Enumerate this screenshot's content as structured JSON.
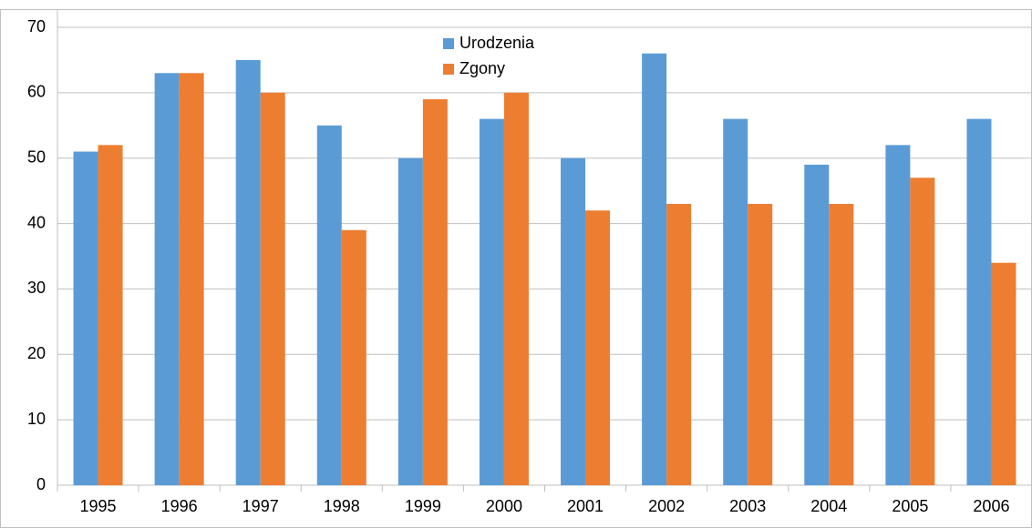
{
  "chart_data": {
    "type": "bar",
    "categories": [
      "1995",
      "1996",
      "1997",
      "1998",
      "1999",
      "2000",
      "2001",
      "2002",
      "2003",
      "2004",
      "2005",
      "2006"
    ],
    "series": [
      {
        "name": "Urodzenia",
        "color": "#5b9bd5",
        "values": [
          51,
          63,
          65,
          55,
          50,
          56,
          50,
          66,
          56,
          49,
          52,
          56
        ]
      },
      {
        "name": "Zgony",
        "color": "#ed7d31",
        "values": [
          52,
          63,
          60,
          39,
          59,
          60,
          42,
          43,
          43,
          43,
          47,
          34
        ]
      }
    ],
    "ylim": [
      0,
      70
    ],
    "yticks": [
      0,
      10,
      20,
      30,
      40,
      50,
      60,
      70
    ],
    "grid": true
  }
}
